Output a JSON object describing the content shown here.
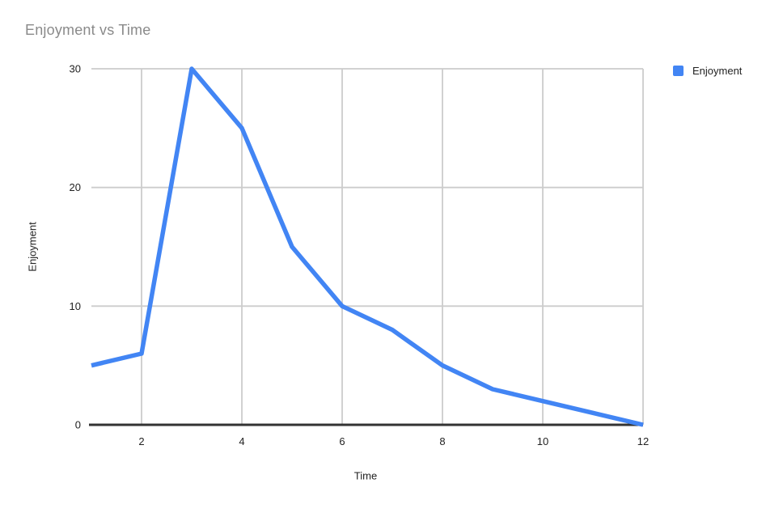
{
  "chart": {
    "title": "Enjoyment vs Time",
    "y_axis_title": "Enjoyment",
    "x_axis_title": "Time",
    "legend": {
      "position": "right",
      "items": [
        {
          "label": "Enjoyment",
          "color": "#4285f4"
        }
      ]
    }
  },
  "chart_data": {
    "type": "line",
    "title": "Enjoyment vs Time",
    "xlabel": "Time",
    "ylabel": "Enjoyment",
    "x": [
      1,
      2,
      3,
      4,
      5,
      6,
      7,
      8,
      9,
      10,
      11,
      12
    ],
    "series": [
      {
        "name": "Enjoyment",
        "color": "#4285f4",
        "values": [
          5,
          6,
          30,
          25,
          15,
          10,
          8,
          5,
          3,
          2,
          1,
          0
        ]
      }
    ],
    "xlim": [
      1,
      12
    ],
    "ylim": [
      0,
      30
    ],
    "x_ticks": [
      2,
      4,
      6,
      8,
      10,
      12
    ],
    "y_ticks": [
      0,
      10,
      20,
      30
    ],
    "grid": true,
    "legend_position": "right"
  },
  "colors": {
    "series_blue": "#4285f4",
    "gridline": "#cccccc",
    "axis_baseline": "#333333",
    "title_gray": "#8a8a8a",
    "tick_label": "#222222",
    "background": "#ffffff"
  }
}
